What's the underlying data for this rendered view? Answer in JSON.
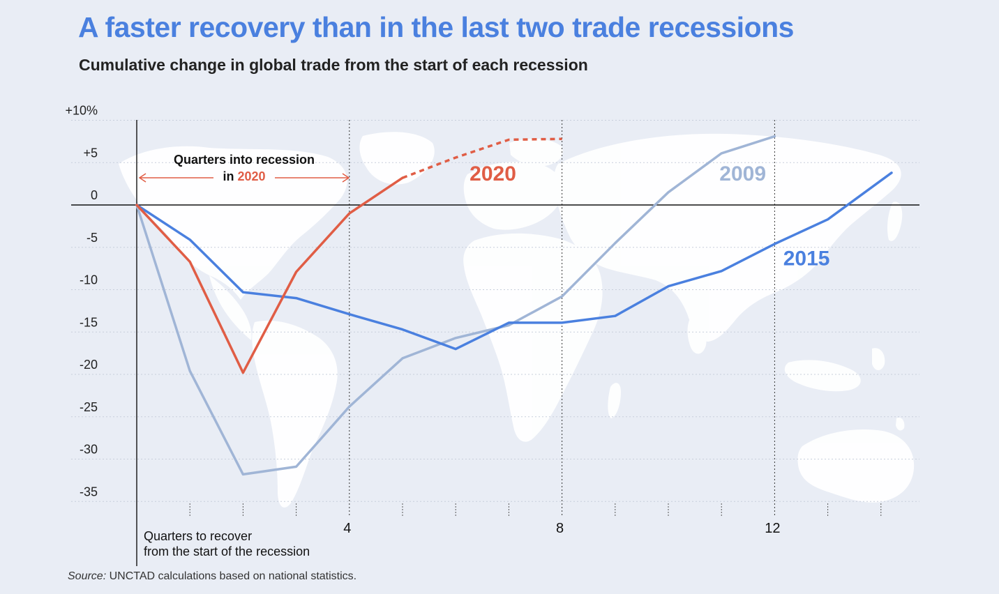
{
  "title": "A faster recovery than in the last two trade recessions",
  "subtitle": "Cumulative change in global trade from the start of each recession",
  "source": {
    "label": "Source:",
    "text": " UNCTAD calculations based on national statistics."
  },
  "annotations": {
    "quarters_into_recession_line1": "Quarters into recession",
    "quarters_into_recession_prefix": "in ",
    "quarters_into_recession_year": "2020",
    "quarters_to_recover_line1": "Quarters to recover",
    "quarters_to_recover_line2": "from the start of the recession"
  },
  "colors": {
    "background": "#e9edf5",
    "map": "#ffffff",
    "series_2020": "#e05d45",
    "series_2009": "#a0b5d6",
    "series_2015": "#4a80df",
    "title": "#4a80df"
  },
  "chart_data": {
    "type": "line",
    "title": "A faster recovery than in the last two trade recessions",
    "subtitle": "Cumulative change in global trade from the start of each recession",
    "xlabel": "Quarters to recover from the start of the recession",
    "ylabel": "",
    "xlim": [
      0,
      14.5
    ],
    "ylim": [
      -36,
      10
    ],
    "y_ticks": [
      {
        "value": 10,
        "label": "+10%"
      },
      {
        "value": 5,
        "label": "+5"
      },
      {
        "value": 0,
        "label": "0"
      },
      {
        "value": -5,
        "label": "-5"
      },
      {
        "value": -10,
        "label": "-10"
      },
      {
        "value": -15,
        "label": "-15"
      },
      {
        "value": -20,
        "label": "-20"
      },
      {
        "value": -25,
        "label": "-25"
      },
      {
        "value": -30,
        "label": "-30"
      },
      {
        "value": -35,
        "label": "-35"
      }
    ],
    "x_ticks": [
      {
        "value": 4,
        "label": "4"
      },
      {
        "value": 8,
        "label": "8"
      },
      {
        "value": 12,
        "label": "12"
      }
    ],
    "x_minor_ticks": [
      1,
      2,
      3,
      5,
      6,
      7,
      9,
      10,
      11,
      13,
      14
    ],
    "grid": true,
    "series": [
      {
        "name": "2020",
        "x": [
          0,
          1,
          2,
          3,
          4,
          5
        ],
        "values": [
          0,
          -6.7,
          -19.8,
          -7.9,
          -1.0,
          3.2
        ],
        "projected_x": [
          5,
          6,
          7,
          8
        ],
        "projected_values": [
          3.2,
          5.6,
          7.7,
          7.8
        ]
      },
      {
        "name": "2009",
        "x": [
          0,
          1,
          2,
          3,
          4,
          5,
          6,
          7,
          8,
          9,
          10,
          11,
          12
        ],
        "values": [
          0,
          -19.6,
          -31.8,
          -30.9,
          -23.8,
          -18.1,
          -15.7,
          -14.2,
          -10.8,
          -4.5,
          1.5,
          6.1,
          8.1
        ]
      },
      {
        "name": "2015",
        "x": [
          0,
          1,
          2,
          3,
          4,
          5,
          6,
          7,
          8,
          9,
          10,
          11,
          12,
          13,
          14.2
        ],
        "values": [
          0,
          -4.1,
          -10.3,
          -11.0,
          -12.9,
          -14.7,
          -17.0,
          -13.9,
          -13.9,
          -13.1,
          -9.6,
          -7.8,
          -4.6,
          -1.7,
          3.8
        ]
      }
    ],
    "series_labels": [
      {
        "name": "2020",
        "x": 6.7,
        "y": 2.9
      },
      {
        "name": "2009",
        "x": 11.4,
        "y": 2.9
      },
      {
        "name": "2015",
        "x": 12.6,
        "y": -7.1
      }
    ]
  }
}
